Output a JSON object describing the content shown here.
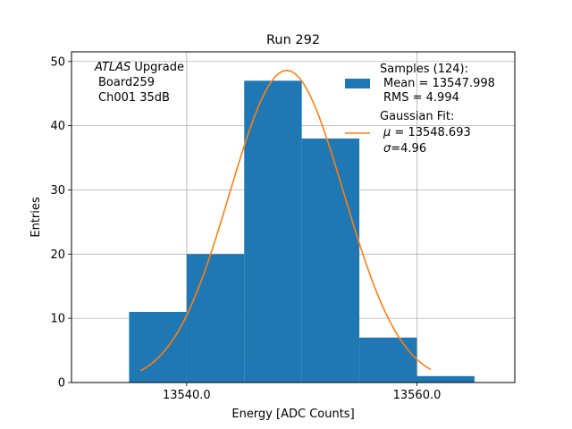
{
  "chart_data": {
    "type": "bar",
    "title": "Run 292",
    "xlabel": "Energy [ADC Counts]",
    "ylabel": "Entries",
    "xlim": [
      13530,
      13568.5
    ],
    "ylim": [
      0,
      51.5
    ],
    "grid": true,
    "bin_edges": [
      13535,
      13540,
      13545,
      13550,
      13555,
      13560,
      13565
    ],
    "values": [
      11,
      20,
      47,
      38,
      7,
      1
    ],
    "bar_color": "#1f77b4",
    "fit_color": "#ff7f0e",
    "fit": {
      "mu": 13548.693,
      "sigma": 4.96,
      "amplitude": 48.6,
      "x_range": [
        13536,
        13561.2
      ]
    },
    "xticks": [
      13540,
      13560
    ],
    "xtick_labels": [
      "13540.0",
      "13560.0"
    ],
    "yticks": [
      0,
      10,
      20,
      30,
      40,
      50
    ],
    "ytick_labels": [
      "0",
      "10",
      "20",
      "30",
      "40",
      "50"
    ],
    "annotation": {
      "line1_italic": "ATLAS",
      "line1_rest": " Upgrade",
      "line2": "Board259",
      "line3": "Ch001 35dB"
    },
    "legend": {
      "placement": "top-right",
      "samples_line1": "Samples (124):",
      "samples_line2": "Mean = 13547.998",
      "samples_line3": "RMS = 4.994",
      "fit_line1": "Gaussian Fit:",
      "fit_line2_sym": "μ",
      "fit_line2_rest": " = 13548.693",
      "fit_line3_sym": "σ",
      "fit_line3_rest": "=4.96"
    }
  }
}
